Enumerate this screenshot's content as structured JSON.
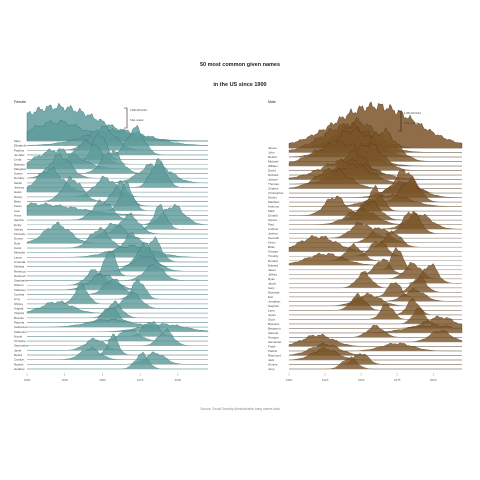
{
  "title_line1": "50 most common given names",
  "title_line2": "in the US since 1900",
  "caption": "Source: Social Security Administration baby names data",
  "colors": {
    "female_fill": "#5f9b9b",
    "female_stroke": "#2f6d6d",
    "male_fill": "#7a5428",
    "male_stroke": "#4e3317",
    "baseline": "#cfcfcf"
  },
  "chart_data": [
    {
      "type": "area",
      "subtype": "ridgeline",
      "panel": "Female",
      "title": "Female",
      "xlim": [
        1900,
        2020
      ],
      "x_ticks": [
        1900,
        1925,
        1950,
        1975,
        2000
      ],
      "annotations": [
        "2,000,000 births",
        "Total, scaled"
      ],
      "series": [
        {
          "name": "Mary",
          "peak_year": 1920,
          "height": 0.5,
          "width": 25
        },
        {
          "name": "Elizabeth",
          "peak_year": 1960,
          "height": 0.4,
          "width": 30
        },
        {
          "name": "Patricia",
          "peak_year": 1950,
          "height": 0.6,
          "width": 12
        },
        {
          "name": "Jennifer",
          "peak_year": 1972,
          "height": 0.7,
          "width": 8
        },
        {
          "name": "Linda",
          "peak_year": 1948,
          "height": 0.7,
          "width": 6
        },
        {
          "name": "Barbara",
          "peak_year": 1940,
          "height": 0.6,
          "width": 12
        },
        {
          "name": "Margaret",
          "peak_year": 1920,
          "height": 0.5,
          "width": 20
        },
        {
          "name": "Susan",
          "peak_year": 1956,
          "height": 0.6,
          "width": 9
        },
        {
          "name": "Dorothy",
          "peak_year": 1922,
          "height": 0.6,
          "width": 10
        },
        {
          "name": "Sarah",
          "peak_year": 1985,
          "height": 0.5,
          "width": 14
        },
        {
          "name": "Jessica",
          "peak_year": 1987,
          "height": 0.7,
          "width": 7
        },
        {
          "name": "Helen",
          "peak_year": 1915,
          "height": 0.6,
          "width": 12
        },
        {
          "name": "Nancy",
          "peak_year": 1952,
          "height": 0.5,
          "width": 10
        },
        {
          "name": "Betty",
          "peak_year": 1930,
          "height": 0.6,
          "width": 9
        },
        {
          "name": "Karen",
          "peak_year": 1962,
          "height": 0.6,
          "width": 8
        },
        {
          "name": "Lisa",
          "peak_year": 1966,
          "height": 0.7,
          "width": 6
        },
        {
          "name": "Anna",
          "peak_year": 1905,
          "height": 0.3,
          "width": 40
        },
        {
          "name": "Sandra",
          "peak_year": 1950,
          "height": 0.5,
          "width": 9
        },
        {
          "name": "Emily",
          "peak_year": 1997,
          "height": 0.5,
          "width": 10
        },
        {
          "name": "Ashley",
          "peak_year": 1988,
          "height": 0.6,
          "width": 6
        },
        {
          "name": "Kimberly",
          "peak_year": 1968,
          "height": 0.5,
          "width": 9
        },
        {
          "name": "Donna",
          "peak_year": 1958,
          "height": 0.4,
          "width": 9
        },
        {
          "name": "Ruth",
          "peak_year": 1920,
          "height": 0.5,
          "width": 12
        },
        {
          "name": "Carol",
          "peak_year": 1948,
          "height": 0.5,
          "width": 9
        },
        {
          "name": "Michelle",
          "peak_year": 1970,
          "height": 0.5,
          "width": 8
        },
        {
          "name": "Laura",
          "peak_year": 1970,
          "height": 0.3,
          "width": 20
        },
        {
          "name": "Amanda",
          "peak_year": 1984,
          "height": 0.6,
          "width": 7
        },
        {
          "name": "Melissa",
          "peak_year": 1978,
          "height": 0.6,
          "width": 7
        },
        {
          "name": "Rebecca",
          "peak_year": 1978,
          "height": 0.4,
          "width": 12
        },
        {
          "name": "Deborah",
          "peak_year": 1955,
          "height": 0.7,
          "width": 5
        },
        {
          "name": "Stephanie",
          "peak_year": 1984,
          "height": 0.4,
          "width": 9
        },
        {
          "name": "Sharon",
          "peak_year": 1945,
          "height": 0.4,
          "width": 8
        },
        {
          "name": "Kathleen",
          "peak_year": 1950,
          "height": 0.4,
          "width": 12
        },
        {
          "name": "Cynthia",
          "peak_year": 1957,
          "height": 0.4,
          "width": 8
        },
        {
          "name": "Amy",
          "peak_year": 1974,
          "height": 0.5,
          "width": 6
        },
        {
          "name": "Shirley",
          "peak_year": 1936,
          "height": 0.5,
          "width": 6
        },
        {
          "name": "Angela",
          "peak_year": 1970,
          "height": 0.4,
          "width": 8
        },
        {
          "name": "Virginia",
          "peak_year": 1920,
          "height": 0.3,
          "width": 14
        },
        {
          "name": "Brenda",
          "peak_year": 1958,
          "height": 0.4,
          "width": 7
        },
        {
          "name": "Pamela",
          "peak_year": 1955,
          "height": 0.4,
          "width": 7
        },
        {
          "name": "Catherine",
          "peak_year": 1955,
          "height": 0.2,
          "width": 20
        },
        {
          "name": "Katherine",
          "peak_year": 1990,
          "height": 0.2,
          "width": 20
        },
        {
          "name": "Nicole",
          "peak_year": 1982,
          "height": 0.4,
          "width": 7
        },
        {
          "name": "Christine",
          "peak_year": 1968,
          "height": 0.3,
          "width": 9
        },
        {
          "name": "Samantha",
          "peak_year": 1992,
          "height": 0.4,
          "width": 7
        },
        {
          "name": "Janet",
          "peak_year": 1945,
          "height": 0.3,
          "width": 9
        },
        {
          "name": "Debra",
          "peak_year": 1957,
          "height": 0.5,
          "width": 5
        },
        {
          "name": "Carolyn",
          "peak_year": 1942,
          "height": 0.3,
          "width": 9
        },
        {
          "name": "Rachel",
          "peak_year": 1985,
          "height": 0.3,
          "width": 9
        },
        {
          "name": "Heather",
          "peak_year": 1976,
          "height": 0.4,
          "width": 6
        }
      ]
    },
    {
      "type": "area",
      "subtype": "ridgeline",
      "panel": "Male",
      "title": "Male",
      "xlim": [
        1900,
        2020
      ],
      "x_ticks": [
        1900,
        1925,
        1950,
        1975,
        2000
      ],
      "annotations": [
        "4,000,000 births",
        "Total, scaled"
      ],
      "series": [
        {
          "name": "James",
          "peak_year": 1947,
          "height": 0.7,
          "width": 18
        },
        {
          "name": "John",
          "peak_year": 1940,
          "height": 0.7,
          "width": 25
        },
        {
          "name": "Robert",
          "peak_year": 1945,
          "height": 0.7,
          "width": 20
        },
        {
          "name": "Michael",
          "peak_year": 1965,
          "height": 0.8,
          "width": 14
        },
        {
          "name": "William",
          "peak_year": 1935,
          "height": 0.6,
          "width": 25
        },
        {
          "name": "David",
          "peak_year": 1955,
          "height": 0.7,
          "width": 14
        },
        {
          "name": "Richard",
          "peak_year": 1945,
          "height": 0.6,
          "width": 12
        },
        {
          "name": "Joseph",
          "peak_year": 1940,
          "height": 0.5,
          "width": 25
        },
        {
          "name": "Thomas",
          "peak_year": 1945,
          "height": 0.5,
          "width": 18
        },
        {
          "name": "Charles",
          "peak_year": 1930,
          "height": 0.5,
          "width": 16
        },
        {
          "name": "Christopher",
          "peak_year": 1980,
          "height": 0.6,
          "width": 9
        },
        {
          "name": "Daniel",
          "peak_year": 1980,
          "height": 0.4,
          "width": 16
        },
        {
          "name": "Matthew",
          "peak_year": 1984,
          "height": 0.6,
          "width": 9
        },
        {
          "name": "Anthony",
          "peak_year": 1970,
          "height": 0.3,
          "width": 20
        },
        {
          "name": "Mark",
          "peak_year": 1960,
          "height": 0.6,
          "width": 7
        },
        {
          "name": "Donald",
          "peak_year": 1932,
          "height": 0.5,
          "width": 10
        },
        {
          "name": "Steven",
          "peak_year": 1956,
          "height": 0.5,
          "width": 10
        },
        {
          "name": "Paul",
          "peak_year": 1950,
          "height": 0.4,
          "width": 14
        },
        {
          "name": "Andrew",
          "peak_year": 1990,
          "height": 0.4,
          "width": 12
        },
        {
          "name": "Joshua",
          "peak_year": 1985,
          "height": 0.6,
          "width": 8
        },
        {
          "name": "Kenneth",
          "peak_year": 1950,
          "height": 0.4,
          "width": 10
        },
        {
          "name": "Kevin",
          "peak_year": 1963,
          "height": 0.4,
          "width": 9
        },
        {
          "name": "Brian",
          "peak_year": 1972,
          "height": 0.4,
          "width": 8
        },
        {
          "name": "George",
          "peak_year": 1920,
          "height": 0.4,
          "width": 18
        },
        {
          "name": "Timothy",
          "peak_year": 1962,
          "height": 0.4,
          "width": 8
        },
        {
          "name": "Ronald",
          "peak_year": 1945,
          "height": 0.4,
          "width": 8
        },
        {
          "name": "Edward",
          "peak_year": 1925,
          "height": 0.3,
          "width": 18
        },
        {
          "name": "Jason",
          "peak_year": 1975,
          "height": 0.6,
          "width": 5
        },
        {
          "name": "Jeffrey",
          "peak_year": 1965,
          "height": 0.4,
          "width": 7
        },
        {
          "name": "Ryan",
          "peak_year": 1986,
          "height": 0.4,
          "width": 8
        },
        {
          "name": "Jacob",
          "peak_year": 1998,
          "height": 0.5,
          "width": 7
        },
        {
          "name": "Gary",
          "peak_year": 1952,
          "height": 0.4,
          "width": 7
        },
        {
          "name": "Nicholas",
          "peak_year": 1990,
          "height": 0.4,
          "width": 7
        },
        {
          "name": "Eric",
          "peak_year": 1973,
          "height": 0.4,
          "width": 6
        },
        {
          "name": "Jonathan",
          "peak_year": 1987,
          "height": 0.3,
          "width": 10
        },
        {
          "name": "Stephen",
          "peak_year": 1955,
          "height": 0.3,
          "width": 12
        },
        {
          "name": "Larry",
          "peak_year": 1948,
          "height": 0.4,
          "width": 7
        },
        {
          "name": "Justin",
          "peak_year": 1986,
          "height": 0.4,
          "width": 6
        },
        {
          "name": "Scott",
          "peak_year": 1968,
          "height": 0.4,
          "width": 6
        },
        {
          "name": "Brandon",
          "peak_year": 1990,
          "height": 0.4,
          "width": 6
        },
        {
          "name": "Benjamin",
          "peak_year": 2005,
          "height": 0.3,
          "width": 14
        },
        {
          "name": "Samuel",
          "peak_year": 2000,
          "height": 0.2,
          "width": 25
        },
        {
          "name": "Gregory",
          "peak_year": 1960,
          "height": 0.3,
          "width": 8
        },
        {
          "name": "Alexander",
          "peak_year": 2005,
          "height": 0.3,
          "width": 10
        },
        {
          "name": "Frank",
          "peak_year": 1920,
          "height": 0.3,
          "width": 15
        },
        {
          "name": "Patrick",
          "peak_year": 1975,
          "height": 0.2,
          "width": 15
        },
        {
          "name": "Raymond",
          "peak_year": 1925,
          "height": 0.3,
          "width": 14
        },
        {
          "name": "Jack",
          "peak_year": 1925,
          "height": 0.3,
          "width": 12
        },
        {
          "name": "Dennis",
          "peak_year": 1950,
          "height": 0.3,
          "width": 7
        },
        {
          "name": "Jerry",
          "peak_year": 1942,
          "height": 0.3,
          "width": 7
        }
      ]
    }
  ]
}
